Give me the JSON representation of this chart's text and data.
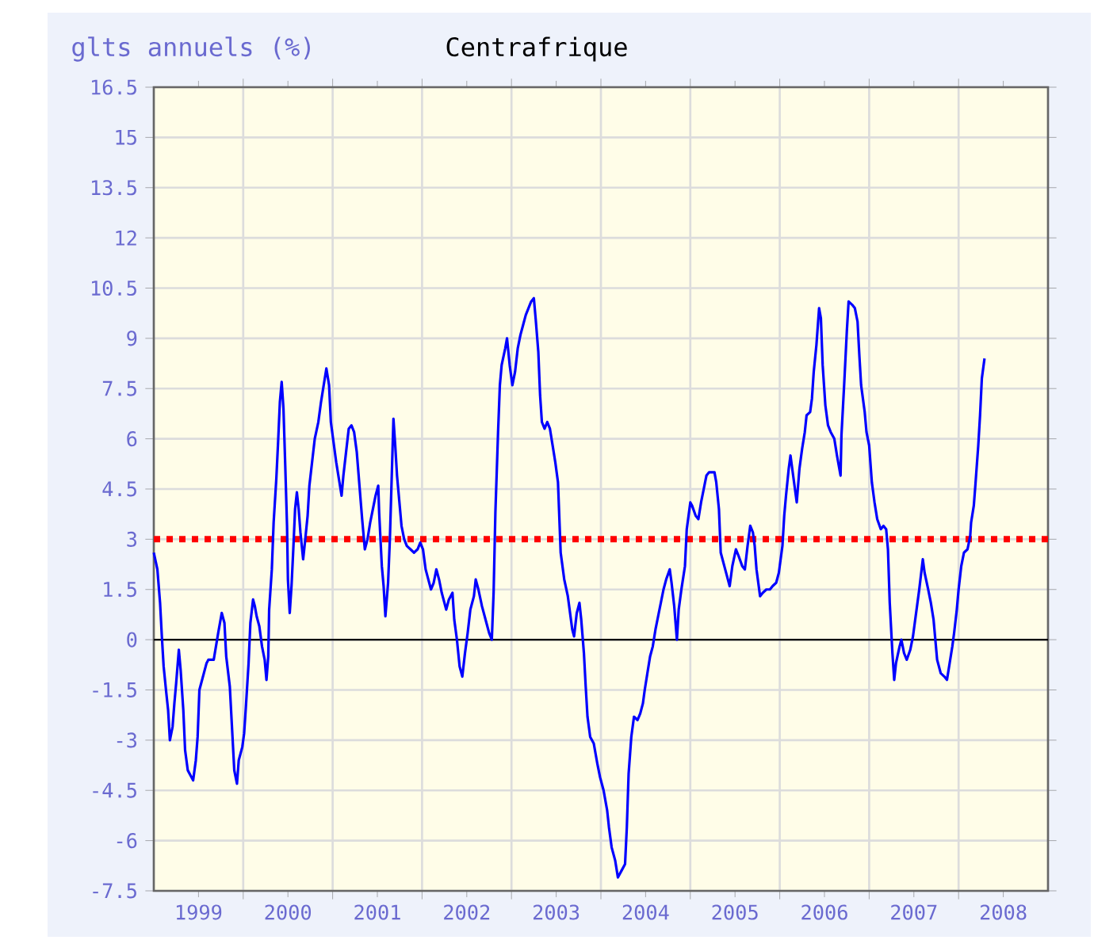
{
  "chart_data": {
    "type": "line",
    "title": "Centrafrique",
    "ylabel": "glts annuels (%)",
    "x": [
      1999.0,
      1999.04,
      1999.07,
      1999.09,
      1999.11,
      1999.14,
      1999.16,
      1999.18,
      1999.21,
      1999.23,
      1999.25,
      1999.28,
      1999.3,
      1999.33,
      1999.35,
      1999.38,
      1999.44,
      1999.47,
      1999.49,
      1999.51,
      1999.56,
      1999.59,
      1999.61,
      1999.67,
      1999.72,
      1999.76,
      1999.79,
      1999.81,
      1999.85,
      1999.88,
      1999.9,
      1999.93,
      1999.95,
      1999.99,
      2000.01,
      2000.03,
      2000.06,
      2000.08,
      2000.11,
      2000.13,
      2000.15,
      2000.18,
      2000.21,
      2000.24,
      2000.26,
      2000.28,
      2000.29,
      2000.32,
      2000.34,
      2000.37,
      2000.39,
      2000.41,
      2000.43,
      2000.45,
      2000.47,
      2000.49,
      2000.5,
      2000.52,
      2000.54,
      2000.56,
      2000.58,
      2000.6,
      2000.62,
      2000.64,
      2000.67,
      2000.69,
      2000.72,
      2000.74,
      2000.77,
      2000.8,
      2000.84,
      2000.87,
      2000.9,
      2000.93,
      2000.96,
      2000.98,
      2001.01,
      2001.04,
      2001.07,
      2001.1,
      2001.12,
      2001.15,
      2001.18,
      2001.21,
      2001.24,
      2001.27,
      2001.3,
      2001.33,
      2001.36,
      2001.39,
      2001.42,
      2001.45,
      2001.48,
      2001.51,
      2001.52,
      2001.55,
      2001.57,
      2001.59,
      2001.62,
      2001.64,
      2001.67,
      2001.68,
      2001.7,
      2001.72,
      2001.75,
      2001.77,
      2001.8,
      2001.83,
      2001.87,
      2001.91,
      2001.95,
      2001.98,
      2002.01,
      2002.04,
      2002.07,
      2002.1,
      2002.13,
      2002.16,
      2002.19,
      2002.22,
      2002.24,
      2002.27,
      2002.3,
      2002.34,
      2002.36,
      2002.39,
      2002.42,
      2002.45,
      2002.48,
      2002.51,
      2002.54,
      2002.58,
      2002.6,
      2002.63,
      2002.67,
      2002.72,
      2002.75,
      2002.78,
      2002.8,
      2002.82,
      2002.85,
      2002.87,
      2002.89,
      2002.93,
      2002.95,
      2002.98,
      2003.01,
      2003.04,
      2003.07,
      2003.1,
      2003.13,
      2003.16,
      2003.19,
      2003.22,
      2003.25,
      2003.27,
      2003.3,
      2003.32,
      2003.34,
      2003.37,
      2003.4,
      2003.43,
      2003.46,
      2003.49,
      2003.52,
      2003.55,
      2003.59,
      2003.63,
      2003.68,
      2003.7,
      2003.73,
      2003.76,
      2003.78,
      2003.81,
      2003.83,
      2003.85,
      2003.88,
      2003.92,
      2003.96,
      2003.99,
      2004.03,
      2004.07,
      2004.09,
      2004.12,
      2004.16,
      2004.19,
      2004.23,
      2004.27,
      2004.29,
      2004.31,
      2004.34,
      2004.37,
      2004.41,
      2004.44,
      2004.47,
      2004.49,
      2004.52,
      2004.55,
      2004.58,
      2004.61,
      2004.64,
      2004.67,
      2004.7,
      2004.73,
      2004.77,
      2004.79,
      2004.82,
      2004.85,
      2004.87,
      2004.9,
      2004.94,
      2004.96,
      2005.0,
      2005.02,
      2005.06,
      2005.09,
      2005.12,
      2005.15,
      2005.18,
      2005.21,
      2005.25,
      2005.27,
      2005.29,
      2005.32,
      2005.34,
      2005.38,
      2005.41,
      2005.44,
      2005.47,
      2005.51,
      2005.54,
      2005.58,
      2005.61,
      2005.64,
      2005.67,
      2005.7,
      2005.72,
      2005.74,
      2005.78,
      2005.81,
      2005.85,
      2005.89,
      2005.92,
      2005.96,
      2005.99,
      2006.03,
      2006.05,
      2006.07,
      2006.1,
      2006.12,
      2006.15,
      2006.17,
      2006.19,
      2006.22,
      2006.25,
      2006.28,
      2006.3,
      2006.34,
      2006.36,
      2006.38,
      2006.41,
      2006.44,
      2006.46,
      2006.48,
      2006.51,
      2006.54,
      2006.57,
      2006.61,
      2006.64,
      2006.68,
      2006.69,
      2006.72,
      2006.75,
      2006.77,
      2006.81,
      2006.84,
      2006.87,
      2006.89,
      2006.91,
      2006.95,
      2006.97,
      2007.0,
      2007.03,
      2007.06,
      2007.09,
      2007.13,
      2007.16,
      2007.19,
      2007.21,
      2007.23,
      2007.26,
      2007.28,
      2007.3,
      2007.34,
      2007.36,
      2007.39,
      2007.42,
      2007.46,
      2007.49,
      2007.52,
      2007.56,
      2007.6,
      2007.62,
      2007.66,
      2007.69,
      2007.72,
      2007.74,
      2007.76,
      2007.8,
      2007.84,
      2007.87,
      2007.9,
      2007.93,
      2007.95,
      2007.98,
      2008.0,
      2008.03,
      2008.06,
      2008.1,
      2008.13,
      2008.14,
      2008.17,
      2008.19,
      2008.22,
      2008.24,
      2008.26,
      2008.29
    ],
    "series": [
      {
        "color": "#0000ff",
        "values": [
          2.6,
          2.1,
          1.1,
          0.1,
          -0.8,
          -1.6,
          -2.1,
          -3.0,
          -2.6,
          -1.9,
          -1.3,
          -0.3,
          -0.9,
          -2.1,
          -3.3,
          -3.9,
          -4.2,
          -3.6,
          -2.9,
          -1.5,
          -1.0,
          -0.7,
          -0.6,
          -0.6,
          0.2,
          0.8,
          0.5,
          -0.5,
          -1.4,
          -2.9,
          -3.9,
          -4.3,
          -3.6,
          -3.2,
          -2.8,
          -2.0,
          -0.7,
          0.5,
          1.2,
          1.0,
          0.7,
          0.4,
          -0.2,
          -0.6,
          -1.2,
          -0.5,
          0.9,
          2.1,
          3.5,
          4.8,
          5.9,
          7.1,
          7.7,
          6.9,
          5.2,
          3.4,
          1.8,
          0.8,
          1.6,
          2.7,
          3.9,
          4.4,
          3.9,
          3.2,
          2.4,
          2.9,
          3.7,
          4.6,
          5.3,
          6.0,
          6.5,
          7.1,
          7.6,
          8.1,
          7.6,
          6.5,
          5.9,
          5.3,
          4.8,
          4.3,
          4.9,
          5.6,
          6.3,
          6.4,
          6.2,
          5.6,
          4.6,
          3.6,
          2.7,
          3.0,
          3.5,
          3.9,
          4.3,
          4.6,
          3.8,
          2.2,
          1.6,
          0.7,
          1.7,
          3.0,
          5.7,
          6.6,
          5.8,
          4.9,
          4.0,
          3.4,
          3.0,
          2.8,
          2.7,
          2.6,
          2.7,
          2.9,
          2.7,
          2.1,
          1.8,
          1.5,
          1.7,
          2.1,
          1.8,
          1.4,
          1.2,
          0.9,
          1.2,
          1.4,
          0.6,
          0.0,
          -0.8,
          -1.1,
          -0.4,
          0.2,
          0.9,
          1.3,
          1.8,
          1.5,
          1.0,
          0.5,
          0.2,
          0.0,
          1.4,
          3.8,
          6.2,
          7.6,
          8.2,
          8.7,
          9.0,
          8.2,
          7.6,
          8.0,
          8.7,
          9.1,
          9.4,
          9.7,
          9.9,
          10.1,
          10.2,
          9.6,
          8.6,
          7.3,
          6.5,
          6.3,
          6.5,
          6.3,
          5.8,
          5.3,
          4.7,
          2.6,
          1.8,
          1.3,
          0.3,
          0.1,
          0.8,
          1.1,
          0.6,
          -0.4,
          -1.4,
          -2.3,
          -2.9,
          -3.1,
          -3.7,
          -4.1,
          -4.5,
          -5.1,
          -5.6,
          -6.2,
          -6.6,
          -7.1,
          -6.9,
          -6.7,
          -5.6,
          -4.0,
          -2.9,
          -2.3,
          -2.4,
          -2.2,
          -1.9,
          -1.5,
          -1.0,
          -0.5,
          -0.2,
          0.3,
          0.7,
          1.1,
          1.5,
          1.8,
          2.1,
          1.7,
          1.0,
          0.0,
          0.9,
          1.5,
          2.2,
          3.3,
          4.1,
          4.0,
          3.7,
          3.6,
          4.1,
          4.5,
          4.9,
          5.0,
          5.0,
          5.0,
          4.7,
          3.9,
          2.6,
          2.2,
          1.9,
          1.6,
          2.2,
          2.7,
          2.5,
          2.2,
          2.1,
          2.8,
          3.4,
          3.2,
          2.8,
          2.1,
          1.3,
          1.4,
          1.5,
          1.5,
          1.6,
          1.7,
          2.0,
          2.8,
          3.7,
          4.3,
          5.1,
          5.5,
          4.9,
          4.5,
          4.1,
          5.1,
          5.7,
          6.2,
          6.7,
          6.8,
          7.2,
          8.0,
          8.8,
          9.9,
          9.6,
          8.2,
          7.0,
          6.4,
          6.2,
          6.0,
          5.5,
          4.9,
          6.1,
          7.6,
          9.2,
          10.1,
          10.0,
          9.9,
          9.5,
          8.5,
          7.6,
          6.8,
          6.2,
          5.8,
          4.7,
          4.1,
          3.6,
          3.3,
          3.4,
          3.3,
          2.7,
          1.1,
          -0.4,
          -1.2,
          -0.7,
          -0.2,
          0.0,
          -0.4,
          -0.6,
          -0.3,
          0.1,
          0.7,
          1.5,
          2.4,
          2.0,
          1.5,
          1.1,
          0.6,
          0.0,
          -0.6,
          -1.0,
          -1.1,
          -1.2,
          -0.7,
          -0.2,
          0.2,
          0.9,
          1.5,
          2.2,
          2.6,
          2.7,
          3.1,
          3.5,
          4.0,
          4.7,
          5.8,
          6.7,
          7.8,
          8.4
        ]
      }
    ],
    "xlim": [
      1999,
      2009
    ],
    "xticks": [
      {
        "value": 1999.5,
        "label": "1999"
      },
      {
        "value": 2000,
        "label": null
      },
      {
        "value": 2000.5,
        "label": "2000"
      },
      {
        "value": 2001,
        "label": null
      },
      {
        "value": 2001.5,
        "label": "2001"
      },
      {
        "value": 2002,
        "label": null
      },
      {
        "value": 2002.5,
        "label": "2002"
      },
      {
        "value": 2003,
        "label": null
      },
      {
        "value": 2003.5,
        "label": "2003"
      },
      {
        "value": 2004,
        "label": null
      },
      {
        "value": 2004.5,
        "label": "2004"
      },
      {
        "value": 2005,
        "label": null
      },
      {
        "value": 2005.5,
        "label": "2005"
      },
      {
        "value": 2006,
        "label": null
      },
      {
        "value": 2006.5,
        "label": "2006"
      },
      {
        "value": 2007,
        "label": null
      },
      {
        "value": 2007.5,
        "label": "2007"
      },
      {
        "value": 2008,
        "label": null
      },
      {
        "value": 2008.5,
        "label": "2008"
      }
    ],
    "ylim": [
      -7.5,
      16.5
    ],
    "yticks": [
      -7.5,
      -6,
      -4.5,
      -3,
      -1.5,
      0,
      1.5,
      3,
      4.5,
      6,
      7.5,
      9,
      10.5,
      12,
      13.5,
      15,
      16.5
    ],
    "ref_lines": [
      {
        "axis": "y",
        "value": 3,
        "color": "#ff0000",
        "line_style": "dotted"
      },
      {
        "axis": "y",
        "value": 0,
        "color": "#000000",
        "line_style": "solid"
      }
    ],
    "grid": true,
    "marker": "none",
    "line_style": "solid"
  }
}
